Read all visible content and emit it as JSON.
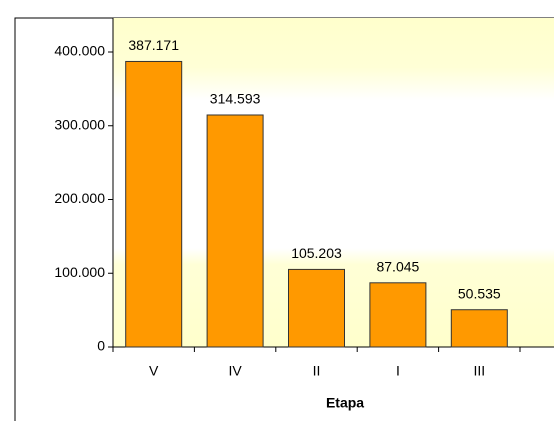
{
  "chart_data": {
    "type": "bar",
    "x_label": "Etapa",
    "categories": [
      "V",
      "IV",
      "II",
      "I",
      "III"
    ],
    "values": [
      387171,
      314593,
      105203,
      87045,
      50535
    ],
    "value_labels": [
      "387.171",
      "314.593",
      "105.203",
      "87.045",
      "50.535"
    ],
    "color": "#ff9900",
    "ylim": [
      0,
      400000
    ],
    "yticks": [
      0,
      {
        "value": 100000,
        "label": "100.000"
      },
      {
        "value": 200000,
        "label": "200.000"
      },
      {
        "value": 300000,
        "label": "300.000"
      },
      {
        "value": 400000,
        "label": "400.000"
      }
    ]
  }
}
